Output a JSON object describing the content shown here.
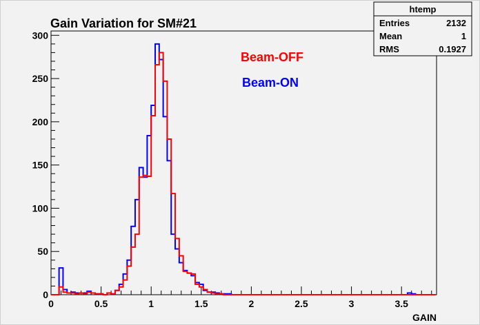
{
  "chart_data": {
    "type": "histogram",
    "title": "Gain Variation for SM#21",
    "xlabel": "GAIN",
    "ylabel": "",
    "xlim": [
      0,
      3.85
    ],
    "ylim": [
      0,
      305
    ],
    "bin_width": 0.04,
    "x_ticks": [
      "0",
      "0.5",
      "1",
      "1.5",
      "2",
      "2.5",
      "3",
      "3.5"
    ],
    "y_ticks": [
      "0",
      "50",
      "100",
      "150",
      "200",
      "250",
      "300"
    ],
    "legend": {
      "placement": "top-center",
      "entries": [
        {
          "label": "Beam-OFF",
          "color": "#ff0000"
        },
        {
          "label": "Beam-ON",
          "color": "#0000ff"
        }
      ]
    },
    "stats_box": {
      "name": "htemp",
      "rows": [
        {
          "label": "Entries",
          "value": "2132"
        },
        {
          "label": "Mean",
          "value": "1"
        },
        {
          "label": "RMS",
          "value": "0.1927"
        }
      ]
    },
    "series": [
      {
        "name": "Beam-OFF",
        "color": "#ff0000",
        "bins": [
          [
            0.08,
            9
          ],
          [
            0.12,
            3
          ],
          [
            0.16,
            2
          ],
          [
            0.2,
            2
          ],
          [
            0.24,
            1
          ],
          [
            0.28,
            2
          ],
          [
            0.32,
            1
          ],
          [
            0.36,
            3
          ],
          [
            0.4,
            2
          ],
          [
            0.44,
            1
          ],
          [
            0.48,
            1
          ],
          [
            0.52,
            0
          ],
          [
            0.56,
            2
          ],
          [
            0.6,
            1
          ],
          [
            0.64,
            5
          ],
          [
            0.68,
            9
          ],
          [
            0.72,
            17
          ],
          [
            0.76,
            33
          ],
          [
            0.8,
            55
          ],
          [
            0.84,
            70
          ],
          [
            0.88,
            136
          ],
          [
            0.92,
            138
          ],
          [
            0.96,
            137
          ],
          [
            1.0,
            207
          ],
          [
            1.04,
            266
          ],
          [
            1.08,
            280
          ],
          [
            1.12,
            247
          ],
          [
            1.16,
            180
          ],
          [
            1.2,
            117
          ],
          [
            1.24,
            65
          ],
          [
            1.28,
            45
          ],
          [
            1.32,
            27
          ],
          [
            1.36,
            25
          ],
          [
            1.4,
            24
          ],
          [
            1.44,
            12
          ],
          [
            1.48,
            9
          ],
          [
            1.52,
            6
          ],
          [
            1.56,
            3
          ],
          [
            1.6,
            2
          ],
          [
            1.64,
            1
          ],
          [
            1.68,
            1
          ]
        ]
      },
      {
        "name": "Beam-ON",
        "color": "#0000ff",
        "bins": [
          [
            0.08,
            31
          ],
          [
            0.12,
            6
          ],
          [
            0.16,
            2
          ],
          [
            0.2,
            3
          ],
          [
            0.24,
            2
          ],
          [
            0.28,
            2
          ],
          [
            0.32,
            2
          ],
          [
            0.36,
            4
          ],
          [
            0.4,
            2
          ],
          [
            0.44,
            1
          ],
          [
            0.48,
            1
          ],
          [
            0.52,
            0
          ],
          [
            0.56,
            2
          ],
          [
            0.6,
            1
          ],
          [
            0.64,
            5
          ],
          [
            0.68,
            12
          ],
          [
            0.72,
            24
          ],
          [
            0.76,
            40
          ],
          [
            0.8,
            79
          ],
          [
            0.84,
            110
          ],
          [
            0.88,
            147
          ],
          [
            0.92,
            136
          ],
          [
            0.96,
            184
          ],
          [
            1.0,
            219
          ],
          [
            1.04,
            290
          ],
          [
            1.08,
            272
          ],
          [
            1.12,
            206
          ],
          [
            1.16,
            155
          ],
          [
            1.2,
            70
          ],
          [
            1.24,
            53
          ],
          [
            1.28,
            37
          ],
          [
            1.32,
            28
          ],
          [
            1.36,
            25
          ],
          [
            1.4,
            22
          ],
          [
            1.44,
            14
          ],
          [
            1.48,
            12
          ],
          [
            1.52,
            5
          ],
          [
            1.56,
            3
          ],
          [
            1.6,
            3
          ],
          [
            1.64,
            2
          ],
          [
            1.68,
            1
          ],
          [
            1.72,
            1
          ],
          [
            1.76,
            1
          ],
          [
            3.56,
            2
          ],
          [
            3.6,
            1
          ]
        ]
      }
    ]
  }
}
